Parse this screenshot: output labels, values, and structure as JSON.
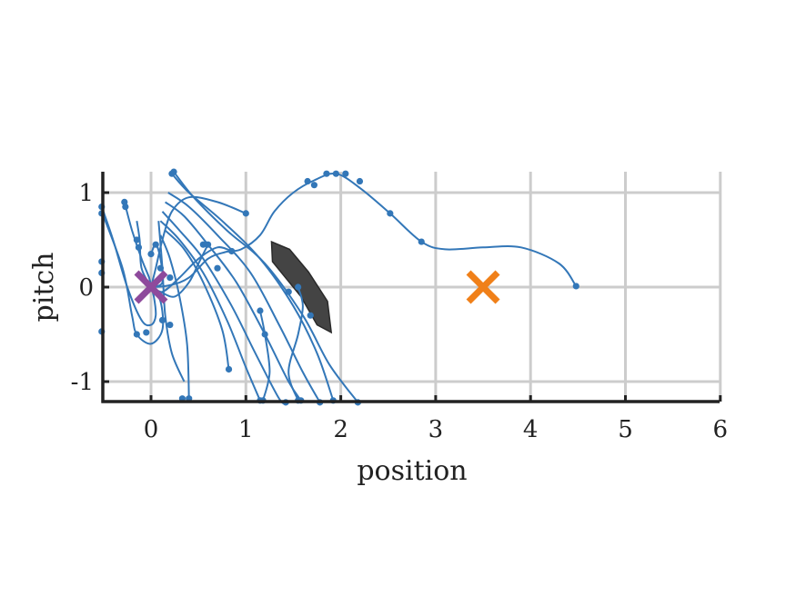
{
  "chart_data": {
    "type": "line",
    "xlabel": "position",
    "ylabel": "pitch",
    "xlim": [
      -0.52,
      6
    ],
    "ylim": [
      -1.22,
      1.22
    ],
    "xticks": [
      0,
      1,
      2,
      3,
      4,
      5,
      6
    ],
    "xtick_labels": [
      "0",
      "1",
      "2",
      "3",
      "4",
      "5",
      "6"
    ],
    "yticks": [
      -1,
      0,
      1
    ],
    "ytick_labels": [
      "-1",
      "0",
      "1"
    ],
    "grid": true,
    "colors": {
      "trajectory": "#3377b8",
      "obstacle": "#444444",
      "goal_marker": "#8e4a9c",
      "start_marker": "#f08019",
      "grid": "#cccccc",
      "axis": "#222222"
    },
    "goal": {
      "x": 0.0,
      "y": 0.0
    },
    "start": {
      "x": 3.5,
      "y": 0.0
    },
    "obstacle_polygon": [
      [
        1.27,
        0.48
      ],
      [
        1.46,
        0.4
      ],
      [
        1.66,
        0.16
      ],
      [
        1.86,
        -0.15
      ],
      [
        1.9,
        -0.48
      ],
      [
        1.75,
        -0.4
      ],
      [
        1.58,
        -0.1
      ],
      [
        1.28,
        0.27
      ]
    ],
    "series": [
      {
        "points": [
          [
            4.48,
            0.01
          ],
          [
            4.3,
            0.25
          ],
          [
            3.9,
            0.42
          ],
          [
            3.5,
            0.42
          ],
          [
            3.1,
            0.4
          ],
          [
            2.85,
            0.48
          ],
          [
            2.52,
            0.78
          ],
          [
            2.2,
            1.05
          ],
          [
            1.95,
            1.2
          ],
          [
            1.72,
            1.13
          ],
          [
            1.5,
            1.0
          ],
          [
            1.3,
            0.8
          ],
          [
            1.15,
            0.55
          ],
          [
            0.95,
            0.4
          ],
          [
            0.78,
            0.37
          ],
          [
            0.6,
            0.3
          ],
          [
            0.4,
            0.1
          ],
          [
            0.2,
            0.02
          ],
          [
            0.02,
            0.0
          ]
        ],
        "markers": [
          [
            4.48,
            0.01
          ],
          [
            2.85,
            0.48
          ],
          [
            2.52,
            0.78
          ],
          [
            2.2,
            1.12
          ],
          [
            2.05,
            1.2
          ],
          [
            1.95,
            1.2
          ],
          [
            1.85,
            1.2
          ],
          [
            1.65,
            1.12
          ],
          [
            1.72,
            1.08
          ]
        ]
      },
      {
        "points": [
          [
            0.85,
            0.38
          ],
          [
            0.7,
            0.42
          ],
          [
            0.5,
            0.3
          ],
          [
            0.3,
            0.1
          ],
          [
            0.12,
            -0.05
          ],
          [
            0.0,
            0.0
          ]
        ],
        "markers": [
          [
            0.85,
            0.38
          ]
        ]
      },
      {
        "points": [
          [
            1.0,
            0.78
          ],
          [
            0.7,
            0.9
          ],
          [
            0.4,
            0.95
          ],
          [
            0.22,
            0.8
          ],
          [
            0.12,
            0.5
          ],
          [
            0.05,
            0.2
          ],
          [
            0.0,
            0.0
          ]
        ],
        "markers": [
          [
            1.0,
            0.78
          ]
        ]
      },
      {
        "points": [
          [
            0.24,
            1.22
          ],
          [
            0.45,
            0.95
          ],
          [
            0.8,
            0.6
          ],
          [
            1.2,
            0.25
          ],
          [
            1.6,
            -0.3
          ],
          [
            1.88,
            -0.82
          ],
          [
            2.18,
            -1.22
          ]
        ],
        "markers": [
          [
            0.24,
            1.22
          ],
          [
            2.18,
            -1.22
          ]
        ]
      },
      {
        "points": [
          [
            0.22,
            1.2
          ],
          [
            0.4,
            1.0
          ],
          [
            0.75,
            0.7
          ],
          [
            1.15,
            0.3
          ],
          [
            1.5,
            -0.2
          ],
          [
            1.75,
            -0.7
          ],
          [
            1.92,
            -1.2
          ]
        ],
        "markers": [
          [
            0.22,
            1.2
          ],
          [
            1.92,
            -1.2
          ]
        ]
      },
      {
        "points": [
          [
            0.18,
            1.0
          ],
          [
            0.4,
            0.85
          ],
          [
            0.7,
            0.55
          ],
          [
            1.05,
            0.15
          ],
          [
            1.35,
            -0.4
          ],
          [
            1.6,
            -0.9
          ],
          [
            1.78,
            -1.22
          ]
        ],
        "markers": [
          [
            1.78,
            -1.22
          ]
        ]
      },
      {
        "points": [
          [
            0.15,
            0.9
          ],
          [
            0.35,
            0.75
          ],
          [
            0.6,
            0.45
          ],
          [
            0.9,
            0.05
          ],
          [
            1.2,
            -0.5
          ],
          [
            1.45,
            -1.0
          ],
          [
            1.58,
            -1.2
          ]
        ],
        "markers": [
          [
            1.58,
            -1.2
          ]
        ]
      },
      {
        "points": [
          [
            0.12,
            0.8
          ],
          [
            0.3,
            0.6
          ],
          [
            0.55,
            0.3
          ],
          [
            0.85,
            -0.2
          ],
          [
            1.1,
            -0.7
          ],
          [
            1.35,
            -1.18
          ],
          [
            1.42,
            -1.22
          ]
        ],
        "markers": [
          [
            1.42,
            -1.22
          ]
        ]
      },
      {
        "points": [
          [
            0.1,
            0.7
          ],
          [
            0.3,
            0.5
          ],
          [
            0.55,
            0.15
          ],
          [
            0.8,
            -0.35
          ],
          [
            1.0,
            -0.85
          ],
          [
            1.15,
            -1.2
          ]
        ],
        "markers": [
          [
            1.15,
            -1.2
          ]
        ]
      },
      {
        "points": [
          [
            0.15,
            0.6
          ],
          [
            0.35,
            0.4
          ],
          [
            0.55,
            0.05
          ],
          [
            0.75,
            -0.45
          ],
          [
            0.82,
            -0.87
          ]
        ],
        "markers": [
          [
            0.82,
            -0.87
          ]
        ]
      },
      {
        "points": [
          [
            0.1,
            0.55
          ],
          [
            0.2,
            0.3
          ],
          [
            0.3,
            -0.1
          ],
          [
            0.38,
            -0.6
          ],
          [
            0.4,
            -1.18
          ]
        ],
        "markers": [
          [
            0.4,
            -1.18
          ],
          [
            0.33,
            -1.18
          ]
        ]
      },
      {
        "points": [
          [
            0.08,
            0.7
          ],
          [
            0.12,
            0.2
          ],
          [
            0.15,
            -0.3
          ],
          [
            0.22,
            -0.7
          ],
          [
            0.35,
            -1.0
          ]
        ],
        "markers": []
      },
      {
        "points": [
          [
            -0.52,
            0.85
          ],
          [
            -0.4,
            0.5
          ],
          [
            -0.25,
            0.0
          ],
          [
            -0.1,
            -0.35
          ],
          [
            0.0,
            -0.4
          ],
          [
            0.05,
            -0.3
          ],
          [
            0.03,
            -0.1
          ],
          [
            0.0,
            0.0
          ]
        ],
        "markers": [
          [
            -0.52,
            0.85
          ],
          [
            -0.52,
            0.78
          ],
          [
            -0.52,
            0.27
          ],
          [
            -0.52,
            0.15
          ],
          [
            -0.52,
            -0.47
          ]
        ]
      },
      {
        "points": [
          [
            -0.28,
            0.9
          ],
          [
            -0.2,
            0.6
          ],
          [
            -0.1,
            0.3
          ],
          [
            -0.02,
            0.1
          ],
          [
            0.0,
            0.0
          ]
        ],
        "markers": [
          [
            -0.28,
            0.9
          ],
          [
            -0.27,
            0.85
          ]
        ]
      },
      {
        "points": [
          [
            -0.15,
            0.7
          ],
          [
            -0.12,
            0.5
          ],
          [
            -0.1,
            0.2
          ],
          [
            0.0,
            0.0
          ]
        ],
        "markers": [
          [
            -0.15,
            0.5
          ],
          [
            -0.13,
            0.42
          ]
        ]
      },
      {
        "points": [
          [
            -0.52,
            0.8
          ],
          [
            -0.3,
            0.2
          ],
          [
            -0.2,
            -0.3
          ],
          [
            -0.15,
            -0.5
          ],
          [
            0.0,
            -0.6
          ],
          [
            0.12,
            -0.45
          ],
          [
            0.1,
            -0.15
          ],
          [
            0.0,
            0.0
          ]
        ],
        "markers": [
          [
            -0.15,
            -0.5
          ],
          [
            -0.05,
            -0.48
          ],
          [
            0.12,
            -0.35
          ]
        ]
      },
      {
        "points": [
          [
            0.0,
            0.35
          ],
          [
            0.05,
            0.45
          ],
          [
            0.1,
            0.3
          ],
          [
            0.12,
            0.05
          ],
          [
            0.0,
            0.0
          ]
        ],
        "markers": [
          [
            0.0,
            0.35
          ],
          [
            0.05,
            0.45
          ],
          [
            0.1,
            0.2
          ],
          [
            0.2,
            0.1
          ],
          [
            0.2,
            -0.4
          ]
        ]
      },
      {
        "points": [
          [
            0.6,
            0.45
          ],
          [
            0.5,
            0.25
          ],
          [
            0.4,
            0.05
          ],
          [
            0.25,
            -0.1
          ],
          [
            0.1,
            -0.05
          ],
          [
            0.0,
            0.0
          ]
        ],
        "markers": [
          [
            0.6,
            0.45
          ],
          [
            0.7,
            0.2
          ],
          [
            0.55,
            0.45
          ]
        ]
      },
      {
        "points": [
          [
            1.15,
            -0.25
          ],
          [
            1.2,
            -0.5
          ],
          [
            1.25,
            -0.9
          ],
          [
            1.18,
            -1.2
          ]
        ],
        "markers": [
          [
            1.15,
            -0.25
          ],
          [
            1.2,
            -0.5
          ],
          [
            1.18,
            -1.2
          ]
        ]
      },
      {
        "points": [
          [
            1.55,
            0.0
          ],
          [
            1.6,
            -0.2
          ],
          [
            1.55,
            -0.5
          ],
          [
            1.45,
            -0.9
          ],
          [
            1.55,
            -1.2
          ]
        ],
        "markers": [
          [
            1.55,
            0.0
          ],
          [
            1.45,
            -0.05
          ],
          [
            1.68,
            -0.3
          ],
          [
            1.55,
            -1.2
          ]
        ]
      }
    ]
  }
}
